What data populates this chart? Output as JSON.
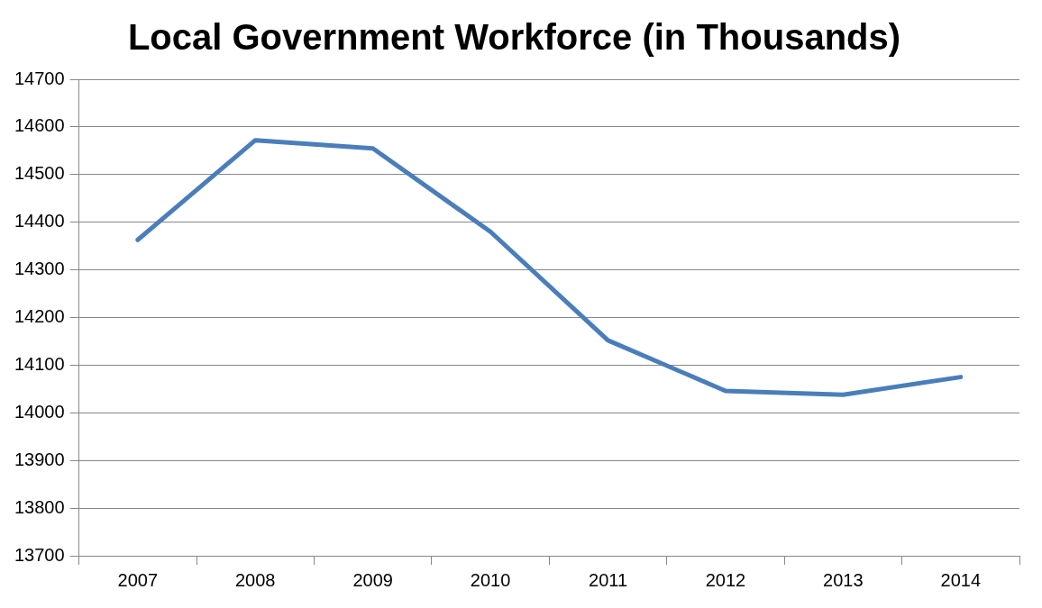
{
  "chart_data": {
    "type": "line",
    "title": "Local Government Workforce (in Thousands)",
    "categories": [
      "2007",
      "2008",
      "2009",
      "2010",
      "2011",
      "2012",
      "2013",
      "2014"
    ],
    "series": [
      {
        "color": "#4a7ebb",
        "values": [
          14363,
          14572,
          14555,
          14380,
          14152,
          14046,
          14038,
          14075
        ]
      }
    ],
    "ylim": [
      13700,
      14700
    ],
    "yticks": [
      13700,
      13800,
      13900,
      14000,
      14100,
      14200,
      14300,
      14400,
      14500,
      14600,
      14700
    ],
    "grid": "y",
    "legend": false,
    "marker": "none",
    "line_style": "solid"
  }
}
